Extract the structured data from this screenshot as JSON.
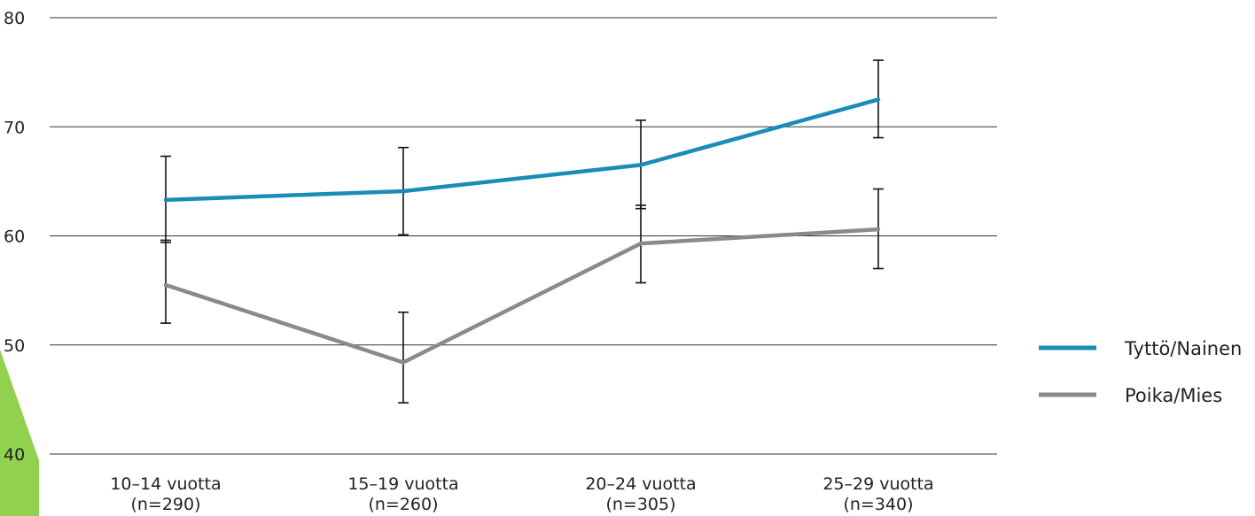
{
  "chart_data": {
    "type": "line",
    "categories": [
      {
        "label": "10–14 vuotta",
        "n": "(n=290)"
      },
      {
        "label": "15–19 vuotta",
        "n": "(n=260)"
      },
      {
        "label": "20–24 vuotta",
        "n": "(n=305)"
      },
      {
        "label": "25–29 vuotta",
        "n": "(n=340)"
      }
    ],
    "ylim": [
      40,
      80
    ],
    "yticks": [
      "40",
      "50",
      "60",
      "70",
      "80"
    ],
    "grid": true,
    "legend_position": "right",
    "series": [
      {
        "name": "Tyttö/Nainen",
        "color": "#1a8cb5",
        "values": [
          63.3,
          64.1,
          66.5,
          72.5
        ],
        "error_low": [
          59.4,
          60.1,
          62.5,
          69.0
        ],
        "error_high": [
          67.3,
          68.1,
          70.6,
          76.1
        ]
      },
      {
        "name": "Poika/Mies",
        "color": "#8a8a8e",
        "values": [
          55.5,
          48.4,
          59.3,
          60.6
        ],
        "error_low": [
          52.0,
          44.7,
          55.7,
          57.0
        ],
        "error_high": [
          59.6,
          53.0,
          62.8,
          64.3
        ]
      }
    ],
    "decoration_color": "#92d050"
  }
}
